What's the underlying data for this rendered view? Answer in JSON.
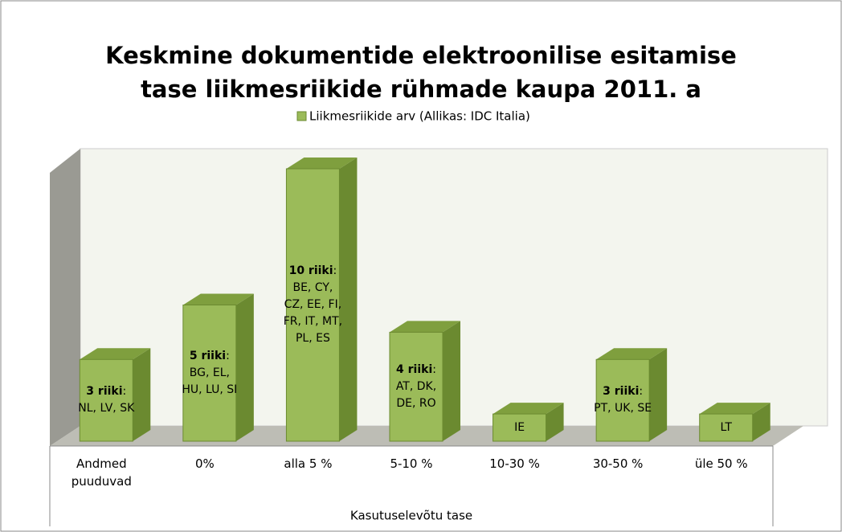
{
  "chart_data": {
    "type": "bar3d",
    "title": "Keskmine dokumentide elektroonilise esitamise tase liikmesriikide rühmade kaupa 2011. a",
    "legend": "Liikmesriikide arv (Allikas: IDC Italia)",
    "x_label": "Kasutuselevõtu tase",
    "color": "#9bbb59",
    "categories": [
      "Andmed puuduvad",
      "0%",
      "alla 5 %",
      "5-10 %",
      "10-30 %",
      "30-50 %",
      "üle 50 %"
    ],
    "values": [
      3,
      5,
      10,
      4,
      1,
      3,
      1
    ],
    "value_labels": [
      "3 riiki",
      "5 riiki",
      "10 riiki",
      "4 riiki",
      null,
      "3 riiki",
      null
    ],
    "countries": [
      "NL, LV, SK",
      "BG, EL, HU, LU, SI",
      "BE, CY, CZ, EE, FI, FR, IT, MT, PL, ES",
      "AT, DK, DE, RO",
      "IE",
      "PT, UK, SE",
      "LT"
    ]
  }
}
